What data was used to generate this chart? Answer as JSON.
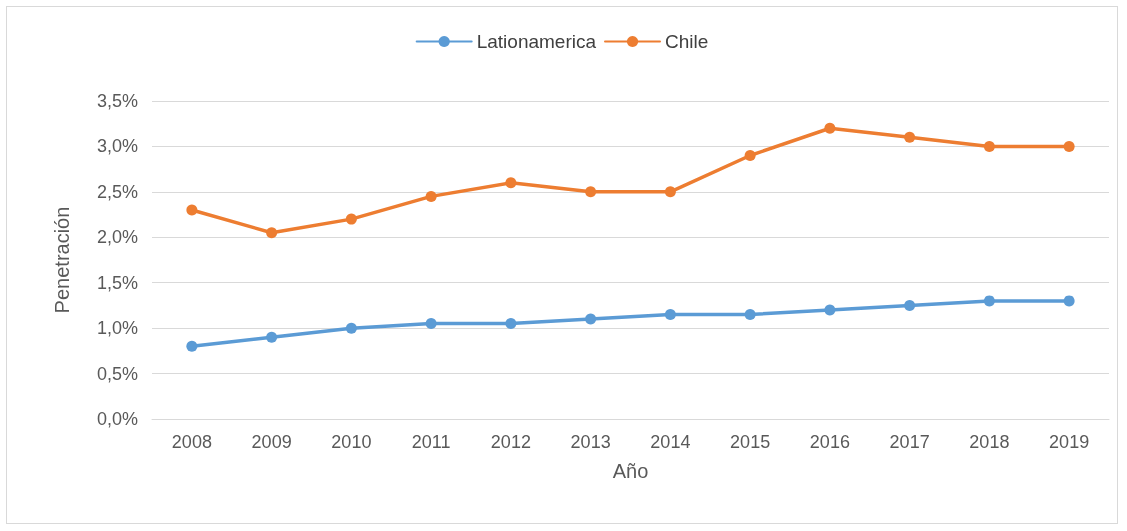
{
  "chart_data": {
    "type": "line",
    "xlabel": "Año",
    "ylabel": "Penetración",
    "categories": [
      "2008",
      "2009",
      "2010",
      "2011",
      "2012",
      "2013",
      "2014",
      "2015",
      "2016",
      "2017",
      "2018",
      "2019"
    ],
    "series": [
      {
        "name": "Lationamerica",
        "color": "#5b9bd5",
        "values": [
          0.8,
          0.9,
          1.0,
          1.05,
          1.05,
          1.1,
          1.15,
          1.15,
          1.2,
          1.25,
          1.3,
          1.3
        ]
      },
      {
        "name": "Chile",
        "color": "#ed7d31",
        "values": [
          2.3,
          2.05,
          2.2,
          2.45,
          2.6,
          2.5,
          2.5,
          2.9,
          3.2,
          3.1,
          3.0,
          3.0
        ]
      }
    ],
    "ylim": [
      0,
      3.5
    ],
    "yticks": [
      {
        "value": 0,
        "label": "0,0%"
      },
      {
        "value": 0.5,
        "label": "0,5%"
      },
      {
        "value": 1,
        "label": "1,0%"
      },
      {
        "value": 1.5,
        "label": "1,5%"
      },
      {
        "value": 2,
        "label": "2,0%"
      },
      {
        "value": 2.5,
        "label": "2,5%"
      },
      {
        "value": 3,
        "label": "3,0%"
      },
      {
        "value": 3.5,
        "label": "3,5%"
      }
    ],
    "grid": "y",
    "legend": "top",
    "marker": "circle",
    "line_style": "solid"
  }
}
